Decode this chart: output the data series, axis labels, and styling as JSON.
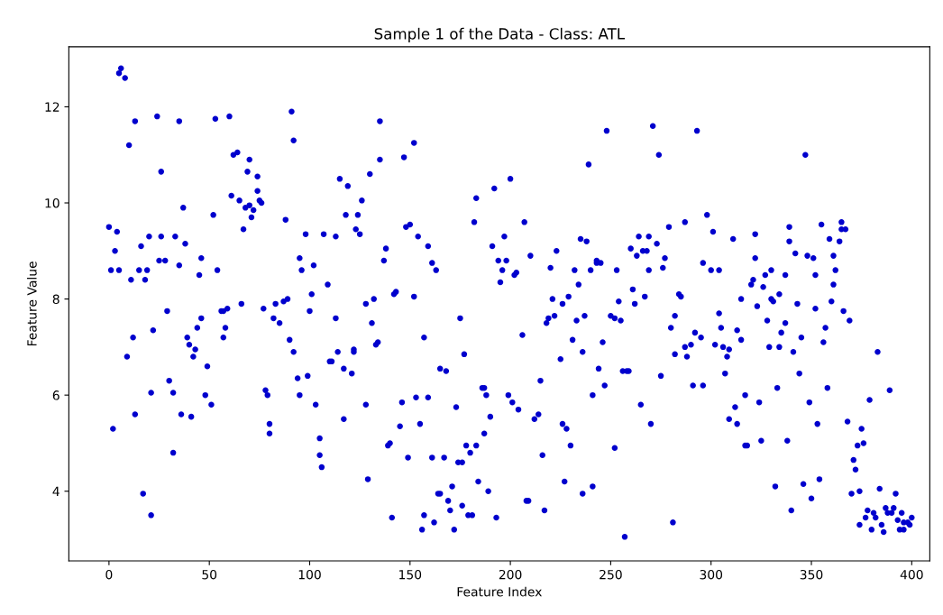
{
  "chart_data": {
    "type": "scatter",
    "title": "Sample 1 of the Data - Class: ATL",
    "xlabel": "Feature Index",
    "ylabel": "Feature Value",
    "xlim": [
      -20,
      409
    ],
    "ylim": [
      2.55,
      13.25
    ],
    "xticks": [
      0,
      50,
      100,
      150,
      200,
      250,
      300,
      350,
      400
    ],
    "yticks": [
      4,
      6,
      8,
      10,
      12
    ],
    "grid": false,
    "marker": "circle",
    "series": [
      {
        "color": "#0000cd",
        "x": [
          0,
          1,
          2,
          3,
          4,
          5,
          5,
          6,
          8,
          9,
          10,
          11,
          12,
          13,
          13,
          15,
          16,
          17,
          18,
          19,
          20,
          21,
          21,
          22,
          24,
          25,
          26,
          26,
          28,
          29,
          30,
          32,
          32,
          33,
          35,
          35,
          36,
          37,
          38,
          39,
          40,
          41,
          42,
          43,
          44,
          45,
          46,
          46,
          48,
          49,
          51,
          52,
          53,
          54,
          56,
          57,
          57,
          58,
          59,
          60,
          61,
          62,
          64,
          65,
          66,
          67,
          68,
          69,
          70,
          70,
          71,
          72,
          74,
          74,
          75,
          76,
          77,
          78,
          79,
          80,
          80,
          82,
          83,
          85,
          87,
          88,
          89,
          90,
          91,
          92,
          92,
          94,
          95,
          95,
          96,
          98,
          99,
          100,
          101,
          102,
          103,
          105,
          105,
          106,
          107,
          109,
          110,
          111,
          113,
          113,
          114,
          115,
          117,
          117,
          118,
          119,
          121,
          122,
          122,
          123,
          124,
          125,
          126,
          128,
          128,
          129,
          130,
          131,
          132,
          133,
          134,
          135,
          135,
          137,
          138,
          139,
          140,
          141,
          142,
          143,
          145,
          146,
          147,
          148,
          149,
          150,
          152,
          152,
          153,
          154,
          155,
          156,
          157,
          157,
          159,
          159,
          161,
          161,
          162,
          163,
          164,
          165,
          165,
          167,
          168,
          169,
          170,
          171,
          172,
          173,
          174,
          175,
          176,
          176,
          177,
          178,
          179,
          180,
          181,
          182,
          183,
          183,
          184,
          186,
          187,
          187,
          188,
          189,
          190,
          191,
          192,
          193,
          194,
          195,
          196,
          197,
          198,
          199,
          200,
          201,
          202,
          203,
          204,
          206,
          207,
          208,
          209,
          210,
          212,
          214,
          215,
          216,
          217,
          218,
          219,
          220,
          221,
          222,
          223,
          225,
          226,
          226,
          227,
          228,
          229,
          230,
          231,
          232,
          233,
          234,
          235,
          236,
          236,
          237,
          238,
          239,
          240,
          241,
          241,
          243,
          243,
          244,
          245,
          246,
          247,
          248,
          250,
          252,
          252,
          253,
          254,
          255,
          256,
          257,
          258,
          259,
          260,
          261,
          262,
          263,
          264,
          265,
          266,
          267,
          268,
          269,
          269,
          270,
          271,
          273,
          274,
          275,
          276,
          277,
          279,
          280,
          281,
          282,
          282,
          284,
          285,
          287,
          287,
          288,
          290,
          291,
          292,
          293,
          295,
          296,
          296,
          298,
          300,
          301,
          302,
          304,
          304,
          305,
          306,
          307,
          308,
          309,
          309,
          311,
          312,
          313,
          313,
          315,
          315,
          317,
          317,
          318,
          320,
          321,
          322,
          322,
          323,
          324,
          325,
          326,
          327,
          328,
          329,
          330,
          330,
          331,
          332,
          333,
          334,
          334,
          335,
          337,
          337,
          338,
          339,
          339,
          340,
          341,
          342,
          343,
          344,
          345,
          346,
          347,
          348,
          349,
          350,
          351,
          352,
          352,
          353,
          354,
          355,
          356,
          357,
          358,
          359,
          360,
          361,
          361,
          362,
          364,
          365,
          365,
          366,
          367,
          368,
          369,
          370,
          371,
          372,
          373,
          374,
          374,
          375,
          376,
          377,
          378,
          379,
          380,
          381,
          382,
          383,
          384,
          385,
          386,
          387,
          388,
          389,
          390,
          391,
          392,
          393,
          394,
          395,
          396,
          396,
          398,
          399,
          400
        ],
        "values": [
          9.5,
          8.6,
          5.3,
          9.0,
          9.4,
          12.7,
          8.6,
          12.8,
          12.6,
          6.8,
          11.2,
          8.4,
          7.2,
          11.7,
          5.6,
          8.6,
          9.1,
          3.95,
          8.4,
          8.6,
          9.3,
          3.5,
          6.05,
          7.35,
          11.8,
          8.8,
          9.3,
          10.65,
          8.8,
          7.75,
          6.3,
          6.05,
          4.8,
          9.3,
          8.7,
          11.7,
          5.6,
          9.9,
          9.15,
          7.2,
          7.05,
          5.55,
          6.8,
          6.95,
          7.4,
          8.5,
          7.6,
          8.85,
          6.0,
          6.6,
          5.8,
          9.75,
          11.75,
          8.6,
          7.75,
          7.75,
          7.2,
          7.4,
          7.8,
          11.8,
          10.15,
          11.0,
          11.05,
          10.05,
          7.9,
          9.45,
          9.9,
          10.65,
          10.9,
          9.95,
          9.7,
          9.85,
          10.25,
          10.55,
          10.05,
          10.0,
          7.8,
          6.1,
          6.0,
          5.2,
          5.4,
          7.6,
          7.9,
          7.5,
          7.95,
          9.65,
          8.0,
          7.15,
          11.9,
          6.9,
          11.3,
          6.35,
          8.85,
          6.0,
          8.6,
          9.35,
          6.4,
          7.75,
          8.1,
          8.7,
          5.8,
          5.1,
          4.75,
          4.5,
          9.35,
          8.3,
          6.7,
          6.7,
          7.6,
          9.3,
          6.9,
          10.5,
          6.55,
          5.5,
          9.75,
          10.35,
          6.45,
          6.9,
          6.95,
          9.45,
          9.75,
          9.35,
          10.05,
          7.9,
          5.8,
          4.25,
          10.6,
          7.5,
          8.0,
          7.05,
          7.1,
          11.7,
          10.9,
          8.8,
          9.05,
          4.95,
          5.0,
          3.45,
          8.1,
          8.15,
          5.35,
          5.85,
          10.95,
          9.5,
          4.7,
          9.55,
          8.05,
          11.25,
          5.95,
          9.3,
          5.4,
          3.2,
          3.5,
          7.2,
          5.95,
          9.1,
          4.7,
          8.75,
          3.35,
          8.6,
          3.95,
          3.95,
          6.55,
          4.7,
          6.5,
          3.8,
          3.6,
          4.1,
          3.2,
          5.75,
          4.6,
          7.6,
          4.6,
          3.7,
          6.85,
          4.95,
          3.5,
          4.8,
          3.5,
          9.6,
          4.95,
          10.1,
          4.2,
          6.15,
          5.2,
          6.15,
          6.0,
          4.0,
          5.55,
          9.1,
          10.3,
          3.45,
          8.8,
          8.35,
          8.6,
          9.3,
          8.8,
          6.0,
          10.5,
          5.85,
          8.5,
          8.55,
          5.7,
          7.25,
          9.6,
          3.8,
          3.8,
          8.9,
          5.5,
          5.6,
          6.3,
          4.75,
          3.6,
          7.5,
          7.6,
          8.65,
          8.0,
          7.65,
          9.0,
          6.75,
          5.4,
          7.9,
          4.2,
          5.3,
          8.05,
          4.95,
          7.15,
          8.6,
          7.55,
          8.3,
          9.25,
          3.95,
          6.9,
          7.65,
          9.2,
          10.8,
          8.6,
          6.0,
          4.1,
          8.8,
          8.75,
          6.55,
          8.75,
          7.1,
          6.2,
          11.5,
          7.65,
          7.6,
          4.9,
          8.6,
          7.95,
          7.55,
          6.5,
          3.05,
          6.5,
          6.5,
          9.05,
          8.2,
          7.9,
          8.9,
          9.3,
          5.8,
          9.0,
          8.05,
          9.0,
          8.6,
          9.3,
          5.4,
          11.6,
          9.15,
          11.0,
          6.4,
          8.65,
          8.85,
          9.5,
          7.4,
          3.35,
          6.85,
          7.65,
          8.1,
          8.05,
          9.6,
          7.0,
          6.8,
          7.05,
          6.2,
          7.3,
          11.5,
          7.2,
          8.75,
          6.2,
          9.75,
          8.6,
          9.4,
          7.05,
          8.6,
          7.7,
          7.4,
          7.0,
          6.45,
          6.8,
          6.95,
          5.5,
          9.25,
          5.75,
          7.35,
          5.4,
          8.0,
          7.15,
          6.0,
          4.95,
          4.95,
          8.3,
          8.4,
          8.85,
          9.35,
          7.85,
          5.85,
          5.05,
          8.25,
          8.5,
          7.55,
          7.0,
          8.0,
          8.6,
          7.95,
          4.1,
          6.15,
          7.0,
          8.1,
          7.3,
          8.5,
          7.5,
          5.05,
          9.5,
          9.2,
          3.6,
          6.9,
          8.95,
          7.9,
          6.45,
          7.2,
          4.15,
          11.0,
          8.9,
          5.85,
          3.85,
          8.85,
          7.8,
          8.5,
          5.4,
          4.25,
          9.55,
          7.1,
          7.4,
          6.15,
          9.25,
          7.95,
          8.9,
          8.3,
          8.6,
          9.2,
          9.6,
          9.45,
          7.75,
          9.45,
          5.45,
          7.55,
          3.95,
          4.65,
          4.45,
          4.95,
          3.3,
          4.0,
          5.3,
          5.0,
          3.45,
          3.6,
          5.9,
          3.2,
          3.55,
          3.45,
          6.9,
          4.05,
          3.3,
          3.15,
          3.65,
          3.55,
          6.1,
          3.55,
          3.65,
          3.95,
          3.4,
          3.2,
          3.55,
          3.35,
          3.2,
          3.35,
          3.3,
          3.45
        ]
      }
    ]
  }
}
